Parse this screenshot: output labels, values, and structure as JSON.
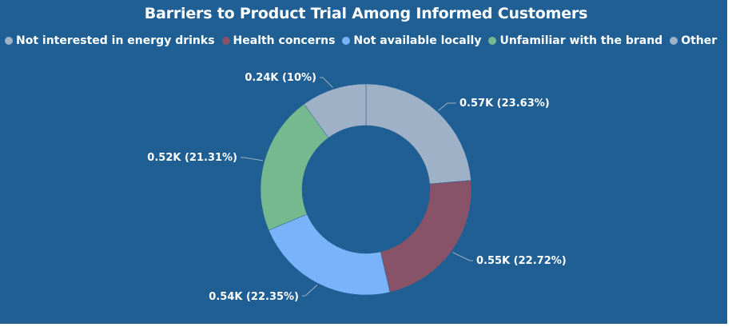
{
  "chart_data": {
    "type": "pie",
    "title": "Barriers to Product Trial Among Informed Customers",
    "donut": true,
    "legend_position": "top",
    "categories": [
      "Not interested in energy drinks",
      "Health concerns",
      "Not available locally",
      "Unfamiliar with the brand",
      "Other"
    ],
    "percentages": [
      23.63,
      22.72,
      22.35,
      21.31,
      10.0
    ],
    "labels": [
      "0.57K (23.63%)",
      "0.55K (22.72%)",
      "0.54K (22.35%)",
      "0.52K (21.31%)",
      "0.24K (10%)"
    ],
    "colors": [
      "#9fb1c6",
      "#885369",
      "#7bb3fb",
      "#77b98f",
      "#9fb1c6"
    ]
  }
}
